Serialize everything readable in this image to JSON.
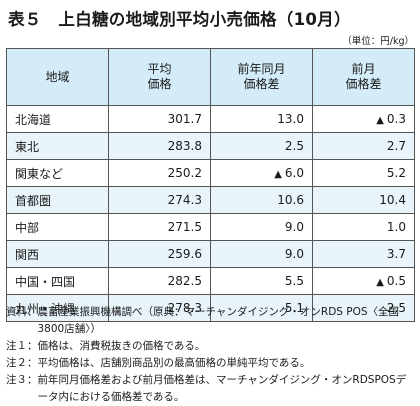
{
  "title": "表５　上白糖の地域別平均小売価格（10月）",
  "unit": "（単位：円/kg）",
  "table": {
    "headers": [
      {
        "line1": "地域",
        "line2": ""
      },
      {
        "line1": "平均",
        "line2": "価格"
      },
      {
        "line1": "前年同月",
        "line2": "価格差"
      },
      {
        "line1": "前月",
        "line2": "価格差"
      }
    ],
    "rows": [
      {
        "region": "北海道",
        "avg": "301.7",
        "yoy": "13.0",
        "yoy_neg": false,
        "mom": "0.3",
        "mom_neg": true
      },
      {
        "region": "東北",
        "avg": "283.8",
        "yoy": "2.5",
        "yoy_neg": false,
        "mom": "2.7",
        "mom_neg": false
      },
      {
        "region": "関東など",
        "avg": "250.2",
        "yoy": "6.0",
        "yoy_neg": true,
        "mom": "5.2",
        "mom_neg": false
      },
      {
        "region": "首都圏",
        "avg": "274.3",
        "yoy": "10.6",
        "yoy_neg": false,
        "mom": "10.4",
        "mom_neg": false
      },
      {
        "region": "中部",
        "avg": "271.5",
        "yoy": "9.0",
        "yoy_neg": false,
        "mom": "1.0",
        "mom_neg": false
      },
      {
        "region": "関西",
        "avg": "259.6",
        "yoy": "9.0",
        "yoy_neg": false,
        "mom": "3.7",
        "mom_neg": false
      },
      {
        "region": "中国・四国",
        "avg": "282.5",
        "yoy": "5.5",
        "yoy_neg": false,
        "mom": "0.5",
        "mom_neg": true
      },
      {
        "region": "九州・沖縄",
        "avg": "278.3",
        "yoy": "5.1",
        "yoy_neg": false,
        "mom": "2.5",
        "mom_neg": false
      }
    ],
    "negative_marker": "▲"
  },
  "notes": [
    {
      "label": "資料：",
      "text": "農畜産業振興機構調べ（原典：マーチャンダイジング・オンRDS POS〈全国3800店舗〉）"
    },
    {
      "label": "注１：",
      "text": "価格は、消費税抜きの価格である。"
    },
    {
      "label": "注２：",
      "text": "平均価格は、店舗別商品別の最高価格の単純平均である。"
    },
    {
      "label": "注３：",
      "text": "前年同月価格差および前月価格差は、マーチャンダイジング・オンRDSPOSデータ内における価格差である。"
    }
  ],
  "colors": {
    "header_bg": "#d4ecf7",
    "alt_row_bg": "#e8f3fa",
    "border": "#555555"
  }
}
